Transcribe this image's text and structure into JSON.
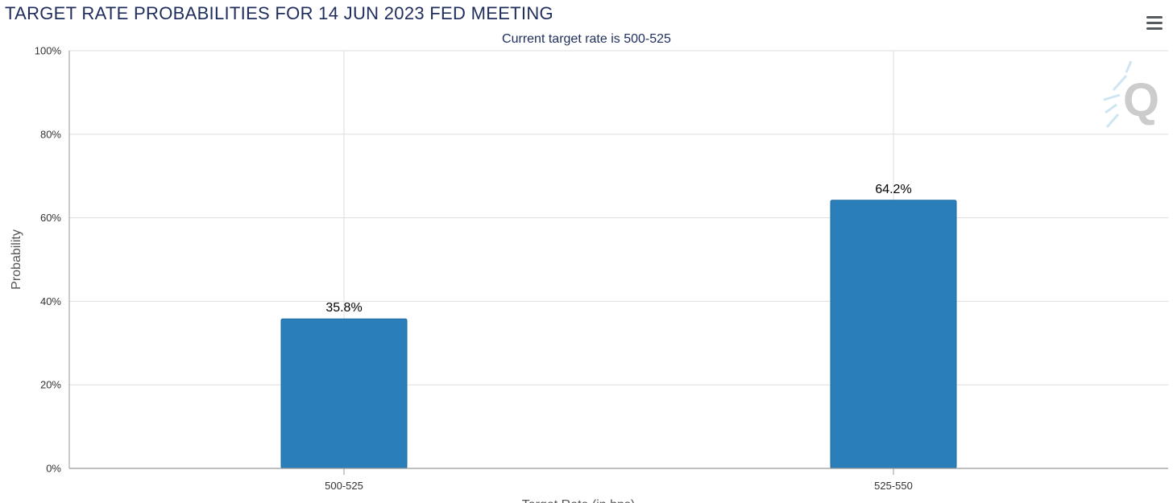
{
  "chart_data": {
    "type": "bar",
    "title": "TARGET RATE PROBABILITIES FOR 14 JUN 2023 FED MEETING",
    "subtitle": "Current target rate is 500-525",
    "categories": [
      "500-525",
      "525-550"
    ],
    "values": [
      35.8,
      64.2
    ],
    "data_labels": [
      "35.8%",
      "64.2%"
    ],
    "ylabel": "Probability",
    "xlabel": "Target Rate (in bps)",
    "ylim": [
      0,
      100
    ],
    "yticks": [
      "0%",
      "20%",
      "40%",
      "60%",
      "80%",
      "100%"
    ],
    "grid": true,
    "legend": "none",
    "colors": {
      "bar": "#2a7fba",
      "bar_border": "#1f6aa0",
      "title": "#1f2d5c",
      "grid": "#dddddd"
    }
  },
  "toolbar": {
    "menu_icon": "hamburger-menu-icon",
    "watermark_icon": "q-logo-icon"
  }
}
